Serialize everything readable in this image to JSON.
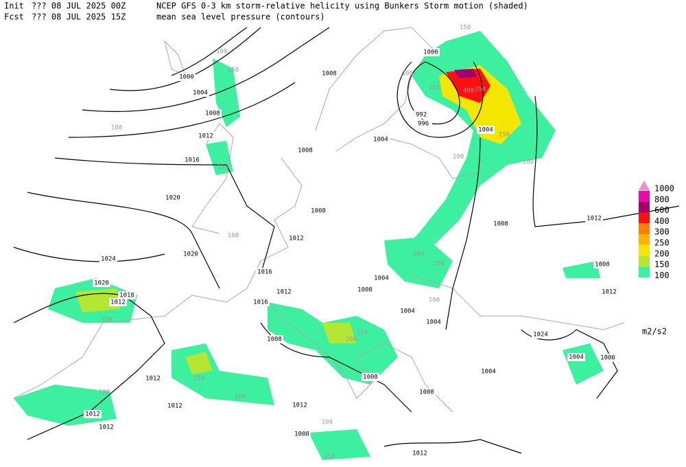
{
  "header": {
    "init_label": "Init",
    "init_value": "??? 08 JUL 2025 00Z",
    "fcst_label": "Fcst",
    "fcst_value": "??? 08 JUL 2025 15Z",
    "title": "NCEP GFS 0-3 km storm-relative helicity using Bunkers Storm motion (shaded)",
    "subtitle": "mean sea level pressure (contours)"
  },
  "legend": {
    "levels": [
      {
        "value": 1000,
        "color": "#f48fbd"
      },
      {
        "value": 800,
        "color": "#e80aa6"
      },
      {
        "value": 600,
        "color": "#a3006f"
      },
      {
        "value": 400,
        "color": "#ff1010"
      },
      {
        "value": 300,
        "color": "#ff7d00"
      },
      {
        "value": 250,
        "color": "#ffb400"
      },
      {
        "value": 200,
        "color": "#f5e600"
      },
      {
        "value": 150,
        "color": "#b4e632"
      },
      {
        "value": 100,
        "color": "#3cf0a0"
      }
    ],
    "unit": "m2/s2"
  },
  "isobar_labels": [
    1000,
    1004,
    1008,
    1012,
    1016,
    1020,
    1024,
    1020,
    1012,
    1012,
    1012,
    1012,
    1012,
    1012,
    1008,
    1012,
    1008,
    1008,
    1008,
    1016,
    1012,
    1016,
    1012,
    1008,
    1008,
    1008,
    1004,
    1000,
    992,
    996,
    1004,
    1008,
    1012,
    1008,
    1012,
    1024,
    1000,
    1004,
    1004,
    1004,
    1004,
    1004,
    1008,
    1020,
    1018
  ],
  "helicity_labels": [
    100,
    150,
    100,
    150,
    150,
    100,
    150,
    400,
    250,
    100,
    150,
    100,
    100,
    150,
    200,
    150,
    100,
    200,
    150,
    100,
    150,
    100,
    150,
    100
  ]
}
